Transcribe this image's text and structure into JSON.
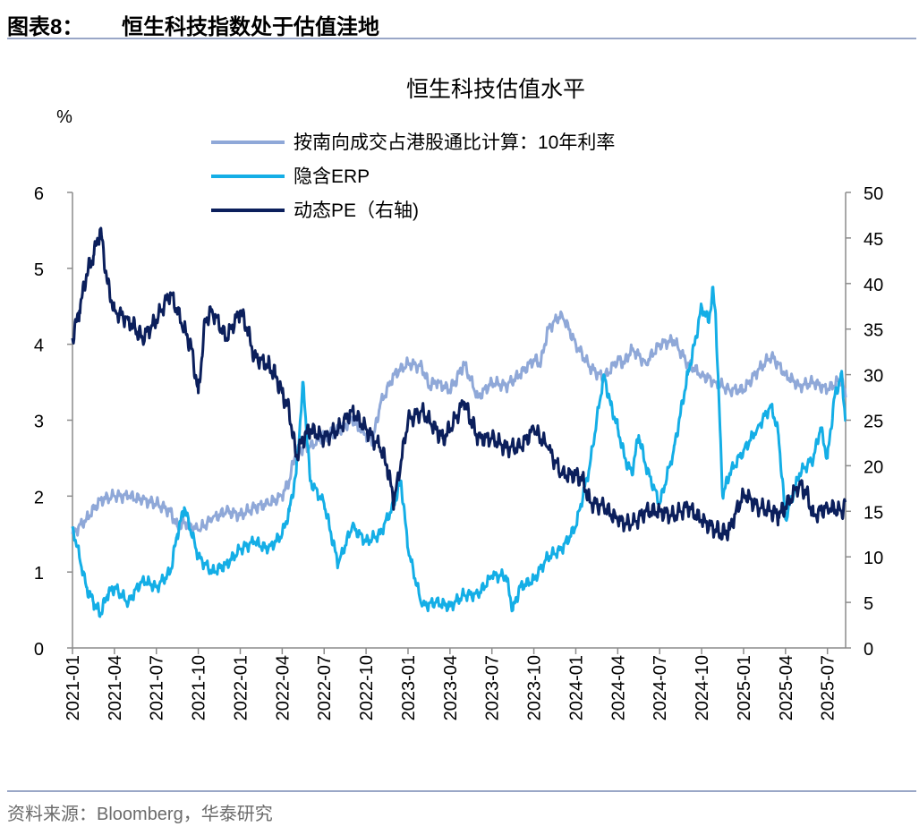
{
  "header": {
    "figure_number": "图表8：",
    "figure_title": "恒生科技指数处于估值洼地"
  },
  "source": "资料来源：Bloomberg，华泰研究",
  "chart_data": {
    "type": "line",
    "title": "恒生科技估值水平",
    "y_left_label": "%",
    "y_left_lim": [
      0,
      6
    ],
    "y_left_ticks": [
      "0",
      "1",
      "2",
      "3",
      "4",
      "5",
      "6"
    ],
    "y_right_lim": [
      0,
      50
    ],
    "y_right_ticks": [
      "0",
      "5",
      "10",
      "15",
      "20",
      "25",
      "30",
      "35",
      "40",
      "45",
      "50"
    ],
    "x_lim": [
      0,
      55.3
    ],
    "x_ticks": [
      "2021-01",
      "2021-04",
      "2021-07",
      "2021-10",
      "2022-01",
      "2022-04",
      "2022-07",
      "2022-10",
      "2023-01",
      "2023-04",
      "2023-07",
      "2023-10",
      "2024-01",
      "2024-04",
      "2024-07",
      "2024-10",
      "2025-01",
      "2025-04",
      "2025-07"
    ],
    "legend_position": "top-center",
    "series": [
      {
        "name": "按南向成交占港股通比计算：10年利率",
        "axis": "left",
        "color": "#8fa8d8",
        "x": [
          0,
          1,
          2,
          3,
          4,
          5,
          6,
          7,
          7.5,
          8,
          9,
          10,
          11,
          12,
          13,
          14,
          15,
          15.5,
          16,
          17,
          18,
          19,
          20,
          21,
          21.5,
          22,
          23,
          24,
          25,
          25.5,
          26,
          27,
          27.5,
          28,
          29,
          30,
          31,
          32,
          33,
          33.5,
          34,
          35,
          36,
          37,
          38,
          39,
          39.5,
          40,
          41,
          42,
          43,
          44,
          45,
          46,
          47,
          48,
          49,
          50,
          51,
          52,
          53,
          54,
          55,
          55.3
        ],
        "values": [
          1.5,
          1.7,
          1.95,
          2.0,
          2.0,
          1.95,
          1.9,
          1.8,
          1.6,
          1.65,
          1.55,
          1.7,
          1.8,
          1.75,
          1.85,
          1.9,
          2.0,
          2.2,
          2.6,
          2.65,
          2.8,
          2.85,
          3.0,
          2.8,
          2.75,
          3.2,
          3.6,
          3.75,
          3.7,
          3.45,
          3.5,
          3.4,
          3.55,
          3.75,
          3.3,
          3.5,
          3.45,
          3.6,
          3.8,
          3.75,
          4.2,
          4.4,
          4.0,
          3.7,
          3.55,
          3.8,
          3.75,
          3.95,
          3.75,
          4.0,
          4.05,
          3.75,
          3.6,
          3.5,
          3.4,
          3.4,
          3.65,
          3.85,
          3.6,
          3.45,
          3.5,
          3.4,
          3.55,
          3.3
        ]
      },
      {
        "name": "隐含ERP",
        "axis": "left",
        "color": "#14aee6",
        "x": [
          0,
          1,
          1.5,
          2,
          2.5,
          3,
          4,
          5,
          6,
          7,
          7.5,
          8,
          9,
          10,
          11,
          12,
          13,
          14,
          15,
          15.5,
          16,
          16.5,
          17,
          18,
          18.5,
          19,
          20,
          21,
          22,
          23,
          23.5,
          24,
          25,
          26,
          27,
          28,
          29,
          30,
          31,
          31.5,
          32,
          33,
          34,
          35,
          36,
          37,
          38,
          38.5,
          39,
          39.5,
          40,
          40.5,
          41,
          42,
          43,
          43.5,
          44,
          44.5,
          45,
          45.5,
          45.8,
          46,
          46.5,
          47,
          48,
          49,
          50,
          50.5,
          51,
          52,
          53,
          53.5,
          54,
          54.5,
          55,
          55.3
        ],
        "values": [
          1.6,
          0.8,
          0.6,
          0.45,
          0.7,
          0.8,
          0.6,
          0.9,
          0.8,
          1.0,
          1.5,
          1.85,
          1.2,
          1.0,
          1.1,
          1.3,
          1.4,
          1.3,
          1.5,
          1.8,
          2.3,
          3.5,
          2.2,
          1.9,
          1.5,
          1.1,
          1.6,
          1.4,
          1.5,
          1.9,
          2.2,
          1.3,
          0.55,
          0.6,
          0.55,
          0.7,
          0.7,
          0.95,
          0.95,
          0.5,
          0.8,
          0.9,
          1.2,
          1.3,
          1.6,
          2.4,
          3.6,
          3.2,
          2.9,
          2.5,
          2.3,
          2.8,
          2.4,
          1.9,
          2.6,
          3.1,
          3.6,
          4.0,
          4.5,
          4.3,
          4.7,
          4.4,
          2.0,
          2.3,
          2.6,
          2.9,
          3.2,
          2.8,
          1.7,
          2.3,
          2.5,
          2.9,
          2.5,
          3.3,
          3.6,
          3.0
        ]
      },
      {
        "name": "动态PE（右轴)",
        "axis": "right",
        "color": "#0b1f5c",
        "x": [
          0,
          0.5,
          1,
          1.5,
          2,
          2.5,
          3,
          4,
          4.5,
          5,
          6,
          7,
          8,
          8.5,
          9,
          9.5,
          10,
          11,
          12,
          12.5,
          13,
          14,
          14.5,
          15,
          15.5,
          16,
          16.5,
          17,
          18,
          19,
          20,
          21,
          22,
          22.5,
          23,
          24,
          25,
          26,
          26.5,
          27,
          28,
          28.5,
          29,
          30,
          31,
          32,
          33,
          34,
          35,
          36,
          36.5,
          37,
          38,
          39,
          40,
          41,
          42,
          43,
          44,
          45,
          46,
          46.5,
          47,
          48,
          49,
          50,
          50.5,
          51,
          52,
          52.5,
          53,
          54,
          55,
          55.3
        ],
        "values": [
          34,
          37,
          41,
          43,
          46,
          40,
          37,
          36,
          35,
          34,
          36,
          39,
          35,
          33,
          28,
          36,
          37,
          34,
          37,
          35,
          32,
          31,
          30,
          28,
          26,
          21,
          23,
          24,
          23,
          24,
          26,
          24,
          22,
          20,
          16,
          25,
          26,
          24,
          23,
          24,
          27,
          25,
          23,
          23,
          22,
          22,
          24,
          22,
          19,
          19,
          18.5,
          16,
          15.5,
          14,
          13.5,
          15,
          15,
          14.5,
          15.5,
          14,
          13,
          12.5,
          13,
          17,
          15.5,
          15,
          14.5,
          15.5,
          18,
          17,
          14.5,
          15.5,
          15,
          16
        ]
      }
    ]
  }
}
